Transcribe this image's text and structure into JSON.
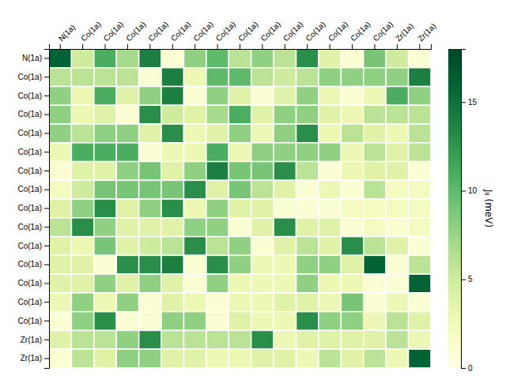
{
  "chart_data": {
    "type": "heatmap",
    "categories": [
      "N(1a)",
      "Co(1a)",
      "Co(1a)",
      "Co(1a)",
      "Co(1a)",
      "Co(1a)",
      "Co(1a)",
      "Co(1a)",
      "Co(1a)",
      "Co(1a)",
      "Co(1a)",
      "Co(1a)",
      "Co(1a)",
      "Co(1a)",
      "Co(1a)",
      "Zr(1a)",
      "Zr(1a)"
    ],
    "values": [
      [
        16,
        5,
        11,
        7,
        14,
        1,
        8,
        10,
        6,
        8,
        6,
        13,
        4,
        1,
        9,
        5,
        1
      ],
      [
        6,
        6,
        6,
        6,
        1,
        14,
        3,
        10,
        10,
        6,
        5,
        6,
        8,
        8,
        8,
        8,
        14
      ],
      [
        8,
        3,
        11,
        4,
        8,
        14,
        1,
        8,
        4,
        1,
        4,
        8,
        3,
        1,
        3,
        11,
        8
      ],
      [
        8,
        3,
        4,
        1,
        13,
        5,
        4,
        7,
        11,
        4,
        8,
        8,
        4,
        3,
        6,
        6,
        6
      ],
      [
        8,
        6,
        8,
        8,
        4,
        13,
        3,
        4,
        8,
        3,
        8,
        13,
        3,
        6,
        4,
        3,
        6
      ],
      [
        3,
        11,
        11,
        11,
        1,
        3,
        3,
        11,
        3,
        8,
        8,
        8,
        8,
        3,
        6,
        4,
        6
      ],
      [
        1,
        4,
        4,
        8,
        9,
        4,
        8,
        14,
        9,
        9,
        13,
        6,
        1,
        3,
        4,
        4,
        1
      ],
      [
        2,
        5,
        9,
        9,
        9,
        9,
        13,
        4,
        9,
        6,
        4,
        1,
        3,
        1,
        6,
        2,
        2
      ],
      [
        4,
        8,
        13,
        4,
        8,
        13,
        3,
        8,
        4,
        4,
        1,
        1,
        1,
        2,
        2,
        2,
        2
      ],
      [
        6,
        13,
        8,
        4,
        4,
        4,
        8,
        8,
        1,
        4,
        13,
        4,
        4,
        1,
        2,
        1,
        2
      ],
      [
        4,
        3,
        9,
        4,
        5,
        6,
        13,
        6,
        8,
        1,
        4,
        6,
        4,
        13,
        6,
        4,
        1
      ],
      [
        4,
        4,
        1,
        13,
        13,
        14,
        1,
        13,
        8,
        3,
        3,
        8,
        8,
        4,
        16,
        1,
        6
      ],
      [
        4,
        4,
        8,
        4,
        8,
        4,
        1,
        8,
        3,
        3,
        3,
        8,
        3,
        3,
        1,
        1,
        16
      ],
      [
        3,
        8,
        3,
        8,
        1,
        4,
        3,
        1,
        3,
        3,
        4,
        4,
        3,
        9,
        1,
        3,
        1
      ],
      [
        1,
        8,
        13,
        1,
        1,
        8,
        8,
        1,
        4,
        3,
        3,
        13,
        8,
        8,
        3,
        6,
        4
      ],
      [
        4,
        6,
        6,
        8,
        13,
        6,
        6,
        6,
        6,
        13,
        3,
        4,
        4,
        4,
        4,
        6,
        3
      ],
      [
        1,
        6,
        4,
        8,
        8,
        4,
        4,
        3,
        3,
        4,
        4,
        3,
        6,
        4,
        6,
        3,
        16
      ]
    ],
    "color": "YlGn",
    "grid": true,
    "colorbar_range": [
      0,
      18
    ],
    "colorbar_ticks": [
      0,
      5,
      10,
      15
    ],
    "colorbar_label": "Jᵢⱼ (meV)"
  }
}
